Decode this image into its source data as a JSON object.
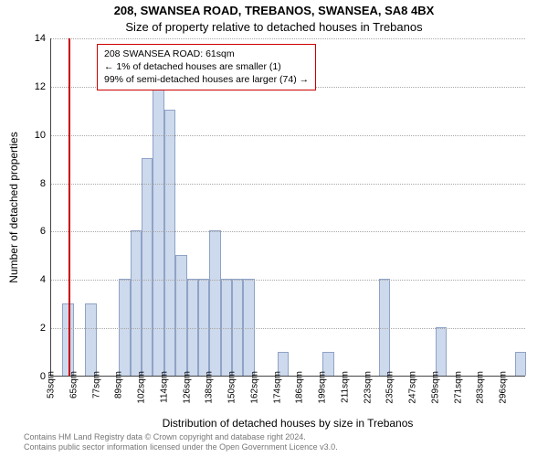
{
  "titles": {
    "line1": "208, SWANSEA ROAD, TREBANOS, SWANSEA, SA8 4BX",
    "line2": "Size of property relative to detached houses in Trebanos"
  },
  "yaxis": {
    "label": "Number of detached properties",
    "ticks": [
      0,
      2,
      4,
      6,
      8,
      10,
      12,
      14
    ],
    "max": 14
  },
  "xaxis": {
    "label": "Distribution of detached houses by size in Trebanos",
    "tick_labels": [
      "53sqm",
      "65sqm",
      "77sqm",
      "89sqm",
      "102sqm",
      "114sqm",
      "126sqm",
      "138sqm",
      "150sqm",
      "162sqm",
      "174sqm",
      "186sqm",
      "199sqm",
      "211sqm",
      "223sqm",
      "235sqm",
      "247sqm",
      "259sqm",
      "271sqm",
      "283sqm",
      "296sqm"
    ],
    "tick_step": 2
  },
  "chart": {
    "type": "histogram",
    "bar_color": "#cdd9ec",
    "bar_border": "#8fa3c7",
    "background": "#ffffff",
    "grid_color": "#a8a8a8",
    "plot_border": "#444444",
    "values": [
      0,
      3,
      0,
      3,
      0,
      0,
      4,
      6,
      9,
      12,
      11,
      5,
      4,
      4,
      6,
      4,
      4,
      4,
      0,
      0,
      1,
      0,
      0,
      0,
      1,
      0,
      0,
      0,
      0,
      4,
      0,
      0,
      0,
      0,
      2,
      0,
      0,
      0,
      0,
      0,
      0,
      1
    ]
  },
  "marker": {
    "color": "#cc0000",
    "bin_index": 1,
    "box": {
      "line1": "208 SWANSEA ROAD: 61sqm",
      "line2": "← 1% of detached houses are smaller (1)",
      "line3": "99% of semi-detached houses are larger (74) →"
    }
  },
  "footer": {
    "line1": "Contains HM Land Registry data © Crown copyright and database right 2024.",
    "line2": "Contains public sector information licensed under the Open Government Licence v3.0."
  }
}
